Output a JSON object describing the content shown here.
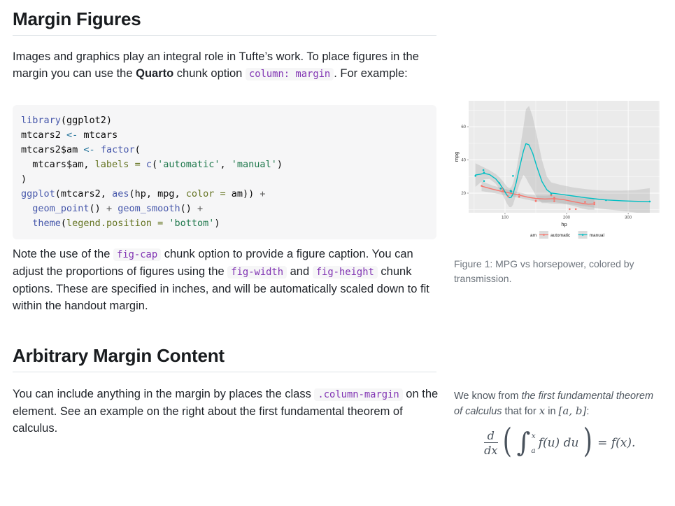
{
  "colors": {
    "accent_red": "#F8766D",
    "accent_teal": "#00BFC4",
    "panel_bg": "#EBEBEB",
    "inline_code": "#8134b3",
    "caption_gray": "#6d747c"
  },
  "section1": {
    "title": "Margin Figures",
    "intro": [
      {
        "t": "Images and graphics play an integral role in Tufte’s work. To place figures in the margin you can use the "
      },
      {
        "t": "Quarto",
        "style": "bold"
      },
      {
        "t": " chunk option "
      },
      {
        "t": "column: margin",
        "style": "code"
      },
      {
        "t": ". For example:"
      }
    ],
    "code_lines": [
      [
        [
          "fu",
          "library"
        ],
        [
          "pl",
          "(ggplot2)"
        ]
      ],
      [
        [
          "pl",
          "mtcars2 "
        ],
        [
          "ar",
          "<-"
        ],
        [
          "pl",
          " mtcars"
        ]
      ],
      [
        [
          "pl",
          "mtcars2$am "
        ],
        [
          "ar",
          "<-"
        ],
        [
          "pl",
          " "
        ],
        [
          "fu",
          "factor"
        ],
        [
          "pl",
          "("
        ]
      ],
      [
        [
          "pl",
          "  mtcars$am, "
        ],
        [
          "at",
          "labels ="
        ],
        [
          "pl",
          " "
        ],
        [
          "fu",
          "c"
        ],
        [
          "pl",
          "("
        ],
        [
          "st",
          "'automatic'"
        ],
        [
          "pl",
          ", "
        ],
        [
          "st",
          "'manual'"
        ],
        [
          "pl",
          ")"
        ]
      ],
      [
        [
          "pl",
          ")"
        ]
      ],
      [
        [
          "fu",
          "ggplot"
        ],
        [
          "pl",
          "(mtcars2, "
        ],
        [
          "fu",
          "aes"
        ],
        [
          "pl",
          "(hp, mpg, "
        ],
        [
          "at",
          "color ="
        ],
        [
          "pl",
          " am)) "
        ],
        [
          "op",
          "+"
        ]
      ],
      [
        [
          "pl",
          "  "
        ],
        [
          "fu",
          "geom_point"
        ],
        [
          "pl",
          "() "
        ],
        [
          "op",
          "+"
        ],
        [
          "pl",
          " "
        ],
        [
          "fu",
          "geom_smooth"
        ],
        [
          "pl",
          "() "
        ],
        [
          "op",
          "+"
        ]
      ],
      [
        [
          "pl",
          "  "
        ],
        [
          "fu",
          "theme"
        ],
        [
          "pl",
          "("
        ],
        [
          "at",
          "legend.position ="
        ],
        [
          "pl",
          " "
        ],
        [
          "st",
          "'bottom'"
        ],
        [
          "pl",
          ")"
        ]
      ]
    ],
    "after_code": [
      {
        "t": "Note the use of the "
      },
      {
        "t": "fig-cap",
        "style": "code"
      },
      {
        "t": " chunk option to provide a figure caption. You can adjust the proportions of figures using the "
      },
      {
        "t": "fig-width",
        "style": "code"
      },
      {
        "t": " and "
      },
      {
        "t": "fig-height",
        "style": "code"
      },
      {
        "t": " chunk options. These are specified in inches, and will be automatically scaled down to fit within the handout margin."
      }
    ]
  },
  "section2": {
    "title": "Arbitrary Margin Content",
    "body": [
      {
        "t": "You can include anything in the margin by places the class "
      },
      {
        "t": ".column-margin",
        "style": "code"
      },
      {
        "t": " on the element. See an example on the right about the first fundamental theorem of calculus."
      }
    ]
  },
  "figure": {
    "caption": "Figure 1: MPG vs horsepower, colored by transmission."
  },
  "margin_note": {
    "segments": [
      {
        "t": "We know from "
      },
      {
        "t": "the first fundamental theorem of calculus",
        "style": "italic"
      },
      {
        "t": " that for "
      },
      {
        "t": "x",
        "style": "math"
      },
      {
        "t": " in "
      },
      {
        "t": "[a, b]",
        "style": "math"
      },
      {
        "t": ":"
      }
    ],
    "formula": {
      "num": "d",
      "den": "dx",
      "lparen": "(",
      "int": "∫",
      "sup": "x",
      "sub": "a",
      "body": "f(u) du",
      "rparen": ")",
      "eq": "= f(x)."
    }
  },
  "chart_data": {
    "type": "scatter",
    "title": "",
    "xlabel": "hp",
    "ylabel": "mpg",
    "x_ticks": [
      100,
      200,
      300
    ],
    "y_ticks": [
      20,
      40,
      60
    ],
    "x_minor": [
      50,
      150,
      250,
      350
    ],
    "y_minor": [
      10,
      30,
      50,
      70
    ],
    "x_domain": [
      41,
      351
    ],
    "y_domain": [
      8.2,
      75.6
    ],
    "panel_bg": "#EBEBEB",
    "grid": true,
    "legend": {
      "position": "bottom",
      "title": "am",
      "entries": [
        {
          "label": "automatic",
          "color": "#F8766D"
        },
        {
          "label": "manual",
          "color": "#00BFC4"
        }
      ]
    },
    "series": [
      {
        "name": "automatic",
        "color": "#F8766D",
        "points": [
          [
            110,
            21.4
          ],
          [
            175,
            18.7
          ],
          [
            105,
            18.1
          ],
          [
            245,
            14.3
          ],
          [
            62,
            24.4
          ],
          [
            95,
            22.8
          ],
          [
            123,
            19.2
          ],
          [
            123,
            17.8
          ],
          [
            180,
            16.4
          ],
          [
            180,
            17.3
          ],
          [
            180,
            15.2
          ],
          [
            205,
            10.4
          ],
          [
            215,
            10.4
          ],
          [
            230,
            14.7
          ],
          [
            97,
            21.5
          ],
          [
            150,
            15.5
          ],
          [
            150,
            15.2
          ],
          [
            245,
            13.3
          ],
          [
            175,
            19.2
          ]
        ],
        "smooth": [
          [
            62,
            24.2
          ],
          [
            80,
            22.4
          ],
          [
            97,
            20.9
          ],
          [
            110,
            19.9
          ],
          [
            123,
            18.8
          ],
          [
            137,
            17.6
          ],
          [
            150,
            16.8
          ],
          [
            165,
            16.5
          ],
          [
            180,
            16.7
          ],
          [
            195,
            16.1
          ],
          [
            210,
            15.0
          ],
          [
            225,
            13.9
          ],
          [
            235,
            13.4
          ],
          [
            245,
            13.5
          ]
        ],
        "band_upper": [
          [
            62,
            27.2
          ],
          [
            80,
            24.6
          ],
          [
            97,
            22.8
          ],
          [
            110,
            21.6
          ],
          [
            123,
            20.5
          ],
          [
            137,
            19.2
          ],
          [
            150,
            18.6
          ],
          [
            165,
            18.5
          ],
          [
            180,
            18.8
          ],
          [
            195,
            18.4
          ],
          [
            210,
            17.6
          ],
          [
            225,
            17.0
          ],
          [
            235,
            16.8
          ],
          [
            245,
            17.0
          ]
        ],
        "band_lower": [
          [
            62,
            21.2
          ],
          [
            80,
            20.2
          ],
          [
            97,
            19.0
          ],
          [
            110,
            18.2
          ],
          [
            123,
            17.1
          ],
          [
            137,
            16.0
          ],
          [
            150,
            15.0
          ],
          [
            165,
            14.5
          ],
          [
            180,
            14.6
          ],
          [
            195,
            13.8
          ],
          [
            210,
            12.4
          ],
          [
            225,
            10.8
          ],
          [
            235,
            10.0
          ],
          [
            245,
            10.0
          ]
        ]
      },
      {
        "name": "manual",
        "color": "#00BFC4",
        "points": [
          [
            110,
            21.0
          ],
          [
            110,
            21.0
          ],
          [
            93,
            22.8
          ],
          [
            66,
            32.4
          ],
          [
            52,
            30.4
          ],
          [
            65,
            33.9
          ],
          [
            66,
            27.3
          ],
          [
            91,
            26.0
          ],
          [
            113,
            30.4
          ],
          [
            264,
            15.8
          ],
          [
            175,
            19.7
          ],
          [
            335,
            15.0
          ],
          [
            109,
            21.4
          ]
        ],
        "smooth": [
          [
            52,
            30.9
          ],
          [
            60,
            31.4
          ],
          [
            66,
            31.9
          ],
          [
            75,
            31.2
          ],
          [
            85,
            28.6
          ],
          [
            91,
            25.9
          ],
          [
            97,
            22.7
          ],
          [
            103,
            18.9
          ],
          [
            107,
            17.3
          ],
          [
            110,
            17.5
          ],
          [
            113,
            19.5
          ],
          [
            118,
            26.0
          ],
          [
            124,
            36.0
          ],
          [
            130,
            45.5
          ],
          [
            134,
            49.8
          ],
          [
            139,
            49.0
          ],
          [
            145,
            44.0
          ],
          [
            152,
            35.5
          ],
          [
            160,
            27.0
          ],
          [
            168,
            22.0
          ],
          [
            175,
            20.1
          ],
          [
            190,
            19.3
          ],
          [
            210,
            18.3
          ],
          [
            230,
            17.3
          ],
          [
            250,
            16.4
          ],
          [
            264,
            15.9
          ],
          [
            290,
            15.4
          ],
          [
            310,
            15.1
          ],
          [
            335,
            14.9
          ]
        ],
        "band_upper": [
          [
            52,
            38.0
          ],
          [
            60,
            36.5
          ],
          [
            66,
            35.5
          ],
          [
            75,
            33.8
          ],
          [
            85,
            31.5
          ],
          [
            91,
            29.5
          ],
          [
            97,
            27.0
          ],
          [
            103,
            24.0
          ],
          [
            107,
            23.0
          ],
          [
            110,
            23.5
          ],
          [
            113,
            26.0
          ],
          [
            118,
            33.0
          ],
          [
            124,
            46.0
          ],
          [
            130,
            60.0
          ],
          [
            134,
            70.5
          ],
          [
            139,
            72.5
          ],
          [
            145,
            66.0
          ],
          [
            152,
            54.0
          ],
          [
            160,
            40.0
          ],
          [
            168,
            30.0
          ],
          [
            175,
            26.5
          ],
          [
            190,
            25.0
          ],
          [
            210,
            23.5
          ],
          [
            230,
            22.5
          ],
          [
            250,
            21.8
          ],
          [
            264,
            21.5
          ],
          [
            290,
            21.5
          ],
          [
            310,
            21.8
          ],
          [
            335,
            23.0
          ]
        ],
        "band_lower": [
          [
            52,
            23.8
          ],
          [
            60,
            26.3
          ],
          [
            66,
            28.3
          ],
          [
            75,
            28.6
          ],
          [
            85,
            25.7
          ],
          [
            91,
            22.3
          ],
          [
            97,
            18.4
          ],
          [
            103,
            13.8
          ],
          [
            107,
            11.6
          ],
          [
            110,
            11.5
          ],
          [
            113,
            13.0
          ],
          [
            118,
            19.0
          ],
          [
            124,
            26.0
          ],
          [
            130,
            31.0
          ],
          [
            134,
            29.1
          ],
          [
            139,
            25.5
          ],
          [
            145,
            22.0
          ],
          [
            152,
            17.0
          ],
          [
            160,
            14.0
          ],
          [
            168,
            14.0
          ],
          [
            175,
            13.7
          ],
          [
            190,
            13.6
          ],
          [
            210,
            13.1
          ],
          [
            230,
            12.1
          ],
          [
            250,
            11.0
          ],
          [
            264,
            10.3
          ],
          [
            290,
            9.3
          ],
          [
            310,
            8.4
          ],
          [
            335,
            6.9
          ]
        ]
      }
    ]
  }
}
